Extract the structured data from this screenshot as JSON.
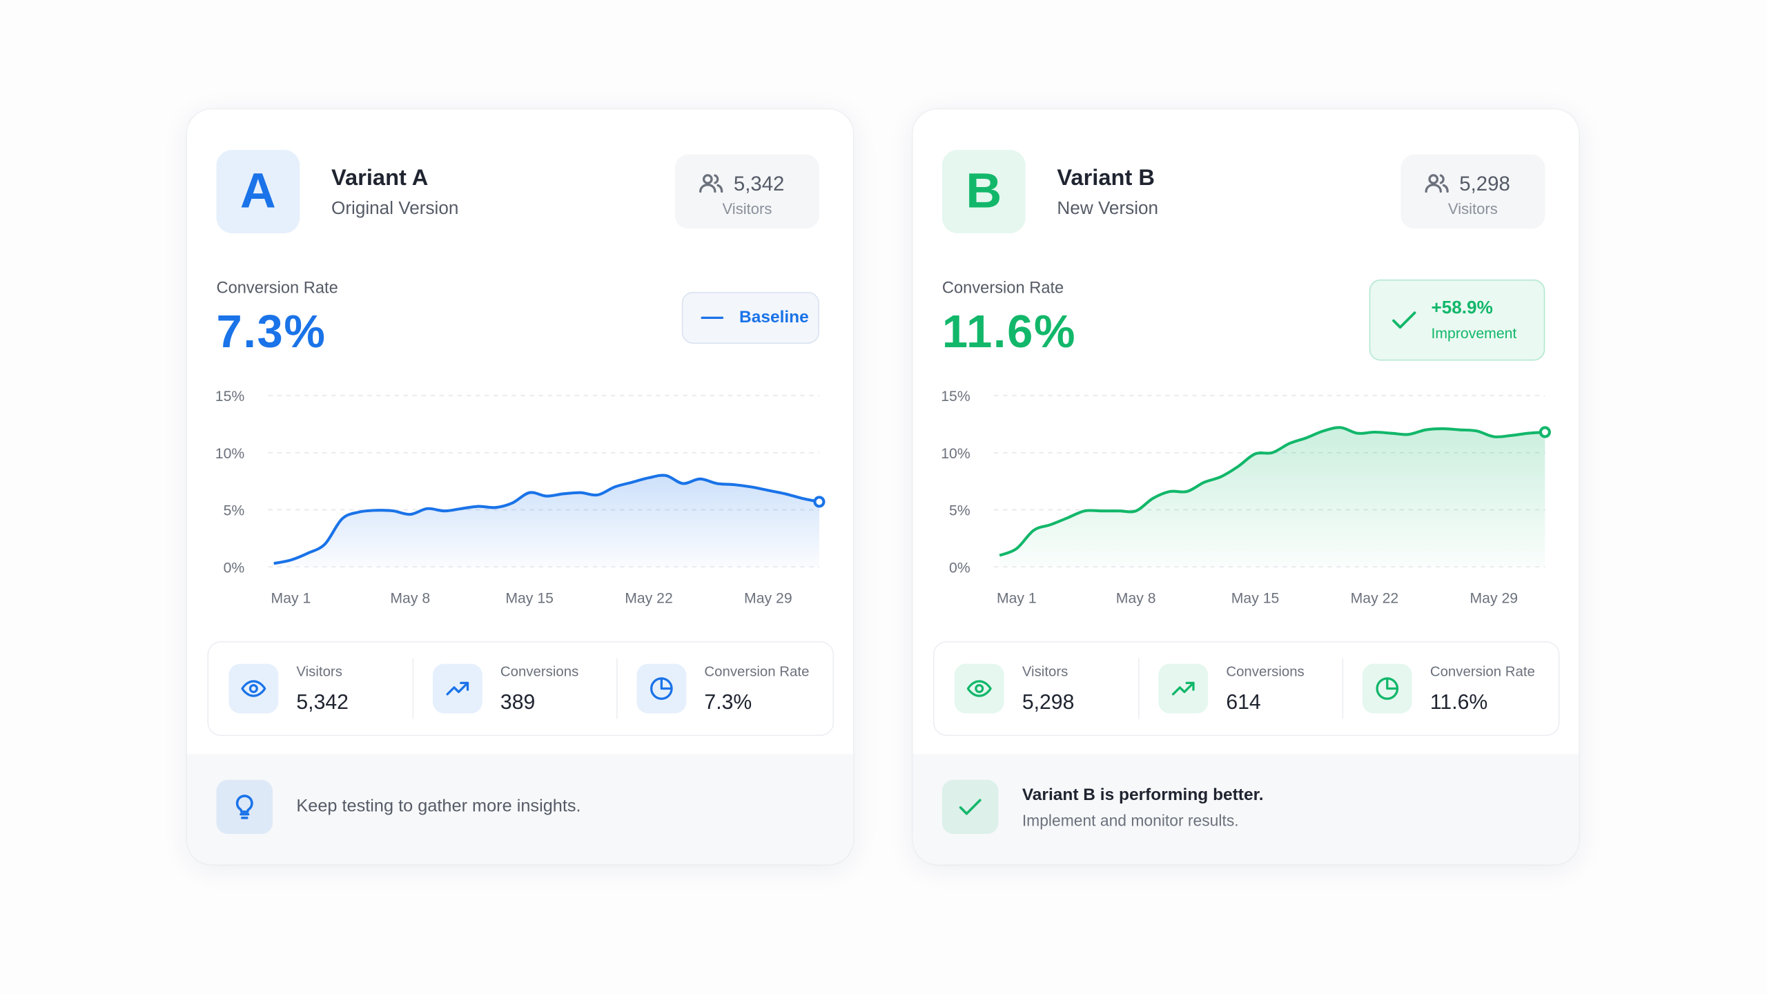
{
  "cards": [
    {
      "letter": "A",
      "title": "Variant A",
      "subtitle": "Original Version",
      "visitors": {
        "value": "5,342",
        "label": "Visitors"
      },
      "rate_label": "Conversion Rate",
      "rate": "7.3%",
      "badge": {
        "text": "Baseline"
      },
      "chart": {
        "type": "line",
        "x": [
          0,
          1,
          2,
          3,
          4,
          5,
          6,
          7,
          8,
          9,
          10,
          11,
          12,
          13,
          14,
          15,
          16,
          17,
          18,
          19,
          20,
          21,
          22,
          23,
          24,
          25,
          26,
          27,
          28,
          29,
          30,
          31,
          32
        ],
        "series": [
          {
            "color": "#1a73e8",
            "values": [
              0.3,
              0.6,
              1.2,
              2.0,
              4.2,
              4.8,
              4.95,
              4.9,
              4.6,
              5.1,
              4.9,
              5.1,
              5.3,
              5.2,
              5.6,
              6.5,
              6.2,
              6.4,
              6.5,
              6.3,
              7.0,
              7.4,
              7.8,
              8.0,
              7.3,
              7.7,
              7.3,
              7.2,
              7.0,
              6.7,
              6.4,
              6.0,
              5.7
            ]
          }
        ],
        "xlim": [
          0,
          32
        ],
        "xticks": [
          {
            "value": 1,
            "label": "May 1"
          },
          {
            "value": 8,
            "label": "May 8"
          },
          {
            "value": 15,
            "label": "May 15"
          },
          {
            "value": 22,
            "label": "May 22"
          },
          {
            "value": 29,
            "label": "May 29"
          }
        ],
        "ylim": [
          0,
          15
        ],
        "yticks": [
          {
            "value": 0,
            "label": "0%"
          },
          {
            "value": 5,
            "label": "5%"
          },
          {
            "value": 10,
            "label": "10%"
          },
          {
            "value": 15,
            "label": "15%"
          }
        ],
        "grid": true
      },
      "stats": [
        {
          "label": "Visitors",
          "value": "5,342"
        },
        {
          "label": "Conversions",
          "value": "389"
        },
        {
          "label": "Conversion Rate",
          "value": "7.3%"
        }
      ],
      "footer": {
        "text": "Keep testing to gather more insights."
      }
    },
    {
      "letter": "B",
      "title": "Variant B",
      "subtitle": "New Version",
      "visitors": {
        "value": "5,298",
        "label": "Visitors"
      },
      "rate_label": "Conversion Rate",
      "rate": "11.6%",
      "badge": {
        "text": "+58.9%",
        "subtext": "Improvement"
      },
      "chart": {
        "type": "line",
        "x": [
          0,
          1,
          2,
          3,
          4,
          5,
          6,
          7,
          8,
          9,
          10,
          11,
          12,
          13,
          14,
          15,
          16,
          17,
          18,
          19,
          20,
          21,
          22,
          23,
          24,
          25,
          26,
          27,
          28,
          29,
          30,
          31,
          32
        ],
        "series": [
          {
            "color": "#12b76a",
            "values": [
              1.0,
              1.6,
              3.2,
              3.7,
              4.3,
              4.9,
              4.9,
              4.9,
              4.9,
              6.0,
              6.6,
              6.6,
              7.4,
              7.9,
              8.8,
              9.9,
              10.0,
              10.8,
              11.3,
              11.9,
              12.2,
              11.7,
              11.8,
              11.7,
              11.6,
              12.0,
              12.1,
              12.0,
              11.9,
              11.4,
              11.5,
              11.7,
              11.8
            ]
          }
        ],
        "xlim": [
          0,
          32
        ],
        "xticks": [
          {
            "value": 1,
            "label": "May 1"
          },
          {
            "value": 8,
            "label": "May 8"
          },
          {
            "value": 15,
            "label": "May 15"
          },
          {
            "value": 22,
            "label": "May 22"
          },
          {
            "value": 29,
            "label": "May 29"
          }
        ],
        "ylim": [
          0,
          15
        ],
        "yticks": [
          {
            "value": 0,
            "label": "0%"
          },
          {
            "value": 5,
            "label": "5%"
          },
          {
            "value": 10,
            "label": "10%"
          },
          {
            "value": 15,
            "label": "15%"
          }
        ],
        "grid": true
      },
      "stats": [
        {
          "label": "Visitors",
          "value": "5,298"
        },
        {
          "label": "Conversions",
          "value": "614"
        },
        {
          "label": "Conversion Rate",
          "value": "11.6%"
        }
      ],
      "footer": {
        "title": "Variant B is performing better.",
        "text": "Implement and monitor results."
      }
    }
  ]
}
